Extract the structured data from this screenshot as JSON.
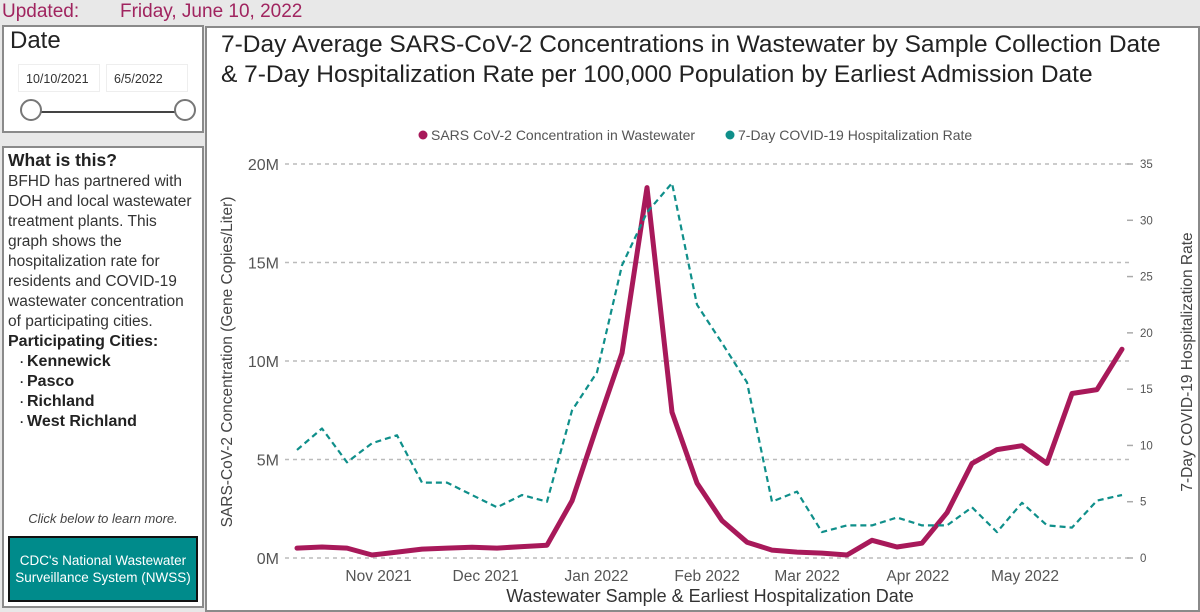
{
  "header": {
    "updated_label": "Updated:",
    "updated_date": "Friday, June 10, 2022"
  },
  "date_filter": {
    "title": "Date",
    "start": "10/10/2021",
    "end": "6/5/2022"
  },
  "info": {
    "heading": "What is this?",
    "body": "BFHD has partnered with DOH and local wastewater treatment plants. This graph shows the hospitalization rate for residents and COVID-19 wastewater concentration of participating cities.",
    "cities_heading": "Participating Cities:",
    "cities": [
      "Kennewick",
      "Pasco",
      "Richland",
      "West Richland"
    ],
    "learn_more": "Click below to learn more.",
    "button_label": "CDC's National Wastewater Surveillance System (NWSS)"
  },
  "colors": {
    "wastewater": "#a8195a",
    "hospitalization": "#0f8f8a",
    "accent": "#a0245f",
    "button": "#008b8b"
  },
  "chart_data": {
    "type": "line",
    "title": "7-Day Average SARS-CoV-2 Concentrations in Wastewater by Sample Collection Date & 7-Day Hospitalization Rate per 100,000 Population by Earliest Admission Date",
    "xlabel": "Wastewater Sample & Earliest Hospitalization Date",
    "ylabel": "SARS-CoV-2 Concentration (Gene Copies/Liter)",
    "y2label": "7-Day COVID-19 Hospitalization Rate",
    "legend_position": "top",
    "grid": true,
    "x": [
      "2021-10-10",
      "2021-10-17",
      "2021-10-24",
      "2021-10-31",
      "2021-11-07",
      "2021-11-14",
      "2021-11-21",
      "2021-11-28",
      "2021-12-05",
      "2021-12-12",
      "2021-12-19",
      "2021-12-26",
      "2022-01-02",
      "2022-01-09",
      "2022-01-16",
      "2022-01-23",
      "2022-01-30",
      "2022-02-06",
      "2022-02-13",
      "2022-02-20",
      "2022-02-27",
      "2022-03-06",
      "2022-03-13",
      "2022-03-20",
      "2022-03-27",
      "2022-04-03",
      "2022-04-10",
      "2022-04-17",
      "2022-04-24",
      "2022-05-01",
      "2022-05-08",
      "2022-05-15",
      "2022-05-22",
      "2022-05-29"
    ],
    "x_ticks": [
      {
        "date": "2021-11-01",
        "label": "Nov 2021"
      },
      {
        "date": "2021-12-01",
        "label": "Dec 2021"
      },
      {
        "date": "2022-01-01",
        "label": "Jan 2022"
      },
      {
        "date": "2022-02-01",
        "label": "Feb 2022"
      },
      {
        "date": "2022-03-01",
        "label": "Mar 2022"
      },
      {
        "date": "2022-04-01",
        "label": "Apr 2022"
      },
      {
        "date": "2022-05-01",
        "label": "May 2022"
      }
    ],
    "ylim": [
      0,
      20000000
    ],
    "y_ticks": [
      {
        "v": 0,
        "label": "0M"
      },
      {
        "v": 5000000,
        "label": "5M"
      },
      {
        "v": 10000000,
        "label": "10M"
      },
      {
        "v": 15000000,
        "label": "15M"
      },
      {
        "v": 20000000,
        "label": "20M"
      }
    ],
    "y2lim": [
      0,
      35
    ],
    "y2_ticks": [
      0,
      5,
      10,
      15,
      20,
      25,
      30,
      35
    ],
    "series": [
      {
        "name": "SARS CoV-2 Concentration in Wastewater",
        "axis": "left",
        "style": "solid",
        "values": [
          500000,
          560000,
          500000,
          150000,
          300000,
          450000,
          500000,
          550000,
          500000,
          580000,
          650000,
          2900000,
          6700000,
          10400000,
          18800000,
          7400000,
          3800000,
          1900000,
          800000,
          400000,
          300000,
          250000,
          150000,
          900000,
          560000,
          750000,
          2300000,
          4800000,
          5500000,
          5700000,
          4800000,
          8350000,
          8550000,
          10600000
        ]
      },
      {
        "name": "7-Day COVID-19 Hospitalization Rate",
        "axis": "right",
        "style": "dashed",
        "values": [
          9.6,
          11.5,
          8.5,
          10.2,
          10.9,
          6.7,
          6.7,
          5.6,
          4.5,
          5.6,
          5.0,
          13.1,
          16.5,
          26.0,
          30.7,
          33.3,
          22.5,
          19.1,
          15.6,
          5.0,
          5.9,
          2.3,
          2.9,
          2.9,
          3.6,
          2.9,
          2.9,
          4.5,
          2.3,
          4.9,
          2.9,
          2.7,
          5.1,
          5.6
        ]
      }
    ]
  }
}
